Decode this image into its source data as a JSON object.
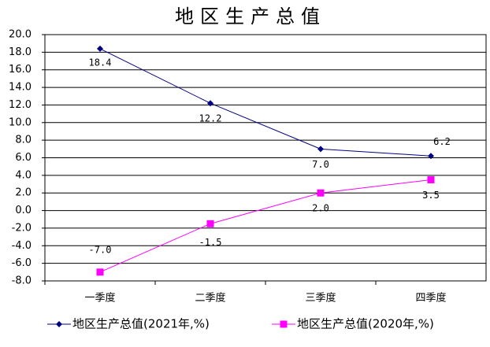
{
  "chart_data": {
    "type": "line",
    "title": "地区生产总值",
    "categories": [
      "一季度",
      "二季度",
      "三季度",
      "四季度"
    ],
    "series": [
      {
        "name": "地区生产总值(2021年,%)",
        "color": "#000080",
        "marker": "diamond",
        "values": [
          18.4,
          12.2,
          7.0,
          6.2
        ],
        "value_labels": [
          "18.4",
          "12.2",
          "7.0",
          "6.2"
        ]
      },
      {
        "name": "地区生产总值(2020年,%)",
        "color": "#ff00ff",
        "marker": "square",
        "values": [
          -7.0,
          -1.5,
          2.0,
          3.5
        ],
        "value_labels": [
          "-7.0",
          "-1.5",
          "2.0",
          "3.5"
        ]
      }
    ],
    "ylim": [
      -8,
      20
    ],
    "yticks": [
      {
        "value": -8,
        "label": "-8.0"
      },
      {
        "value": -6,
        "label": "-6.0"
      },
      {
        "value": -4,
        "label": "-4.0"
      },
      {
        "value": -2,
        "label": "-2.0"
      },
      {
        "value": 0,
        "label": "0.0"
      },
      {
        "value": 2,
        "label": "2.0"
      },
      {
        "value": 4,
        "label": "4.0"
      },
      {
        "value": 6,
        "label": "6.0"
      },
      {
        "value": 8,
        "label": "8.0"
      },
      {
        "value": 10,
        "label": "10.0"
      },
      {
        "value": 12,
        "label": "12.0"
      },
      {
        "value": 14,
        "label": "14.0"
      },
      {
        "value": 16,
        "label": "16.0"
      },
      {
        "value": 18,
        "label": "18.0"
      },
      {
        "value": 20,
        "label": "20.0"
      }
    ],
    "grid": true,
    "legend": "bottom"
  }
}
